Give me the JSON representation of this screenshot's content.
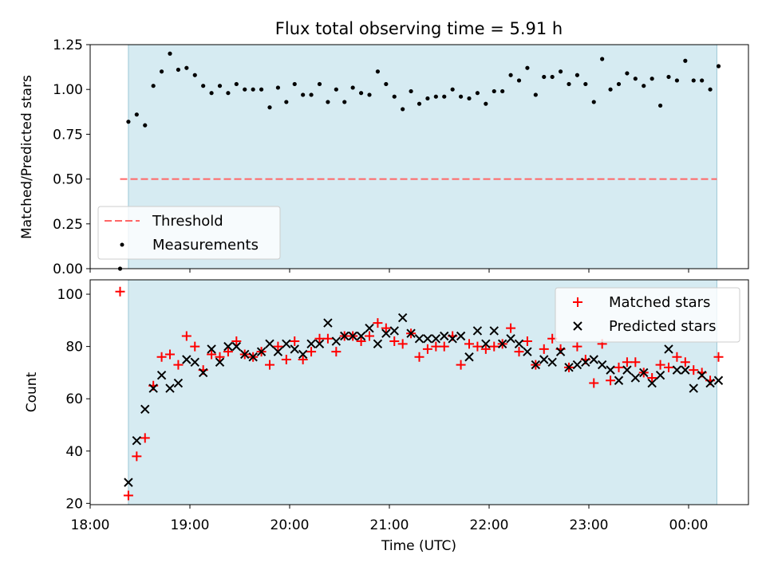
{
  "chart_data": [
    {
      "type": "scatter",
      "title": "Flux total observing time = 5.91 h",
      "xlabel": "",
      "ylabel": "Matched/Predicted stars",
      "ylim": [
        0,
        1.25
      ],
      "yticks": [
        "0.00",
        "0.25",
        "0.50",
        "0.75",
        "1.00",
        "1.25"
      ],
      "xrange": [
        "18:00",
        "00:36"
      ],
      "shaded_span": [
        "18:23",
        "00:17"
      ],
      "threshold": {
        "value": 0.5,
        "x_start": "18:18",
        "x_end": "00:17"
      },
      "legend": [
        "Threshold",
        "Measurements"
      ],
      "legend_position": "lower-left",
      "series": [
        {
          "name": "Measurements",
          "x": [
            "18:18",
            "18:23",
            "18:28",
            "18:33",
            "18:38",
            "18:43",
            "18:48",
            "18:53",
            "18:58",
            "19:03",
            "19:08",
            "19:13",
            "19:18",
            "19:23",
            "19:28",
            "19:33",
            "19:38",
            "19:43",
            "19:48",
            "19:53",
            "19:58",
            "20:03",
            "20:08",
            "20:13",
            "20:18",
            "20:23",
            "20:28",
            "20:33",
            "20:38",
            "20:43",
            "20:48",
            "20:53",
            "20:58",
            "21:03",
            "21:08",
            "21:13",
            "21:18",
            "21:23",
            "21:28",
            "21:33",
            "21:38",
            "21:43",
            "21:48",
            "21:53",
            "21:58",
            "22:03",
            "22:08",
            "22:13",
            "22:18",
            "22:23",
            "22:28",
            "22:33",
            "22:38",
            "22:43",
            "22:48",
            "22:53",
            "22:58",
            "23:03",
            "23:08",
            "23:13",
            "23:18",
            "23:23",
            "23:28",
            "23:33",
            "23:38",
            "23:43",
            "23:48",
            "23:53",
            "23:58",
            "00:03",
            "00:08",
            "00:13",
            "00:18"
          ],
          "values": [
            0.0,
            0.82,
            0.86,
            0.8,
            1.02,
            1.1,
            1.2,
            1.11,
            1.12,
            1.08,
            1.02,
            0.98,
            1.02,
            0.98,
            1.03,
            1.0,
            1.0,
            1.0,
            0.9,
            1.01,
            0.93,
            1.03,
            0.97,
            0.97,
            1.03,
            0.93,
            1.0,
            0.93,
            1.01,
            0.98,
            0.97,
            1.1,
            1.03,
            0.96,
            0.89,
            0.99,
            0.92,
            0.95,
            0.96,
            0.96,
            1.0,
            0.96,
            0.95,
            0.98,
            0.92,
            0.99,
            0.99,
            1.08,
            1.05,
            1.12,
            0.97,
            1.07,
            1.07,
            1.1,
            1.03,
            1.08,
            1.03,
            0.93,
            1.17,
            1.0,
            1.03,
            1.09,
            1.06,
            1.02,
            1.06,
            0.91,
            1.07,
            1.05,
            1.16,
            1.05,
            1.05,
            1.0,
            1.13
          ]
        }
      ]
    },
    {
      "type": "scatter",
      "title": "",
      "xlabel": "Time (UTC)",
      "ylabel": "Count",
      "ylim": [
        19.5,
        105.5
      ],
      "yticks": [
        "20",
        "40",
        "60",
        "80",
        "100"
      ],
      "xticks": [
        "18:00",
        "19:00",
        "20:00",
        "21:00",
        "22:00",
        "23:00",
        "00:00"
      ],
      "xrange": [
        "18:00",
        "00:36"
      ],
      "shaded_span": [
        "18:23",
        "00:17"
      ],
      "legend": [
        "Matched stars",
        "Predicted stars"
      ],
      "legend_position": "upper-right",
      "series": [
        {
          "name": "Matched stars",
          "x": [
            "18:18",
            "18:23",
            "18:28",
            "18:33",
            "18:38",
            "18:43",
            "18:48",
            "18:53",
            "18:58",
            "19:03",
            "19:08",
            "19:13",
            "19:18",
            "19:23",
            "19:28",
            "19:33",
            "19:38",
            "19:43",
            "19:48",
            "19:53",
            "19:58",
            "20:03",
            "20:08",
            "20:13",
            "20:18",
            "20:23",
            "20:28",
            "20:33",
            "20:38",
            "20:43",
            "20:48",
            "20:53",
            "20:58",
            "21:03",
            "21:08",
            "21:13",
            "21:18",
            "21:23",
            "21:28",
            "21:33",
            "21:38",
            "21:43",
            "21:48",
            "21:53",
            "21:58",
            "22:03",
            "22:08",
            "22:13",
            "22:18",
            "22:23",
            "22:28",
            "22:33",
            "22:38",
            "22:43",
            "22:48",
            "22:53",
            "22:58",
            "23:03",
            "23:08",
            "23:13",
            "23:18",
            "23:23",
            "23:28",
            "23:33",
            "23:38",
            "23:43",
            "23:48",
            "23:53",
            "23:58",
            "00:03",
            "00:08",
            "00:13",
            "00:18"
          ],
          "values": [
            101,
            23,
            38,
            45,
            65,
            76,
            77,
            73,
            84,
            80,
            71,
            77,
            76,
            78,
            82,
            77,
            76,
            78,
            73,
            80,
            75,
            82,
            75,
            78,
            83,
            83,
            78,
            84,
            84,
            82,
            84,
            89,
            87,
            82,
            81,
            85,
            76,
            79,
            80,
            80,
            84,
            73,
            81,
            80,
            79,
            80,
            81,
            87,
            78,
            82,
            73,
            79,
            83,
            79,
            72,
            80,
            75,
            66,
            81,
            67,
            72,
            74,
            74,
            70,
            68,
            73,
            72,
            76,
            74,
            71,
            70,
            67,
            76
          ]
        },
        {
          "name": "Predicted stars",
          "x": [
            "18:23",
            "18:28",
            "18:33",
            "18:38",
            "18:43",
            "18:48",
            "18:53",
            "18:58",
            "19:03",
            "19:08",
            "19:13",
            "19:18",
            "19:23",
            "19:28",
            "19:33",
            "19:38",
            "19:43",
            "19:48",
            "19:53",
            "19:58",
            "20:03",
            "20:08",
            "20:13",
            "20:18",
            "20:23",
            "20:28",
            "20:33",
            "20:38",
            "20:43",
            "20:48",
            "20:53",
            "20:58",
            "21:03",
            "21:08",
            "21:13",
            "21:18",
            "21:23",
            "21:28",
            "21:33",
            "21:38",
            "21:43",
            "21:48",
            "21:53",
            "21:58",
            "22:03",
            "22:08",
            "22:13",
            "22:18",
            "22:23",
            "22:28",
            "22:33",
            "22:38",
            "22:43",
            "22:48",
            "22:53",
            "22:58",
            "23:03",
            "23:08",
            "23:13",
            "23:18",
            "23:23",
            "23:28",
            "23:33",
            "23:38",
            "23:43",
            "23:48",
            "23:53",
            "23:58",
            "00:03",
            "00:08",
            "00:13",
            "00:18"
          ],
          "values": [
            28,
            44,
            56,
            64,
            69,
            64,
            66,
            75,
            74,
            70,
            79,
            74,
            80,
            80,
            77,
            76,
            78,
            81,
            78,
            81,
            79,
            77,
            81,
            81,
            89,
            82,
            84,
            84,
            84,
            87,
            81,
            85,
            86,
            91,
            85,
            83,
            83,
            83,
            84,
            83,
            84,
            76,
            86,
            81,
            86,
            81,
            83,
            81,
            78,
            73,
            75,
            74,
            78,
            72,
            73,
            74,
            75,
            73,
            71,
            67,
            71,
            68,
            70,
            66,
            69,
            79,
            71,
            71,
            64,
            69,
            66,
            67
          ]
        }
      ]
    }
  ]
}
